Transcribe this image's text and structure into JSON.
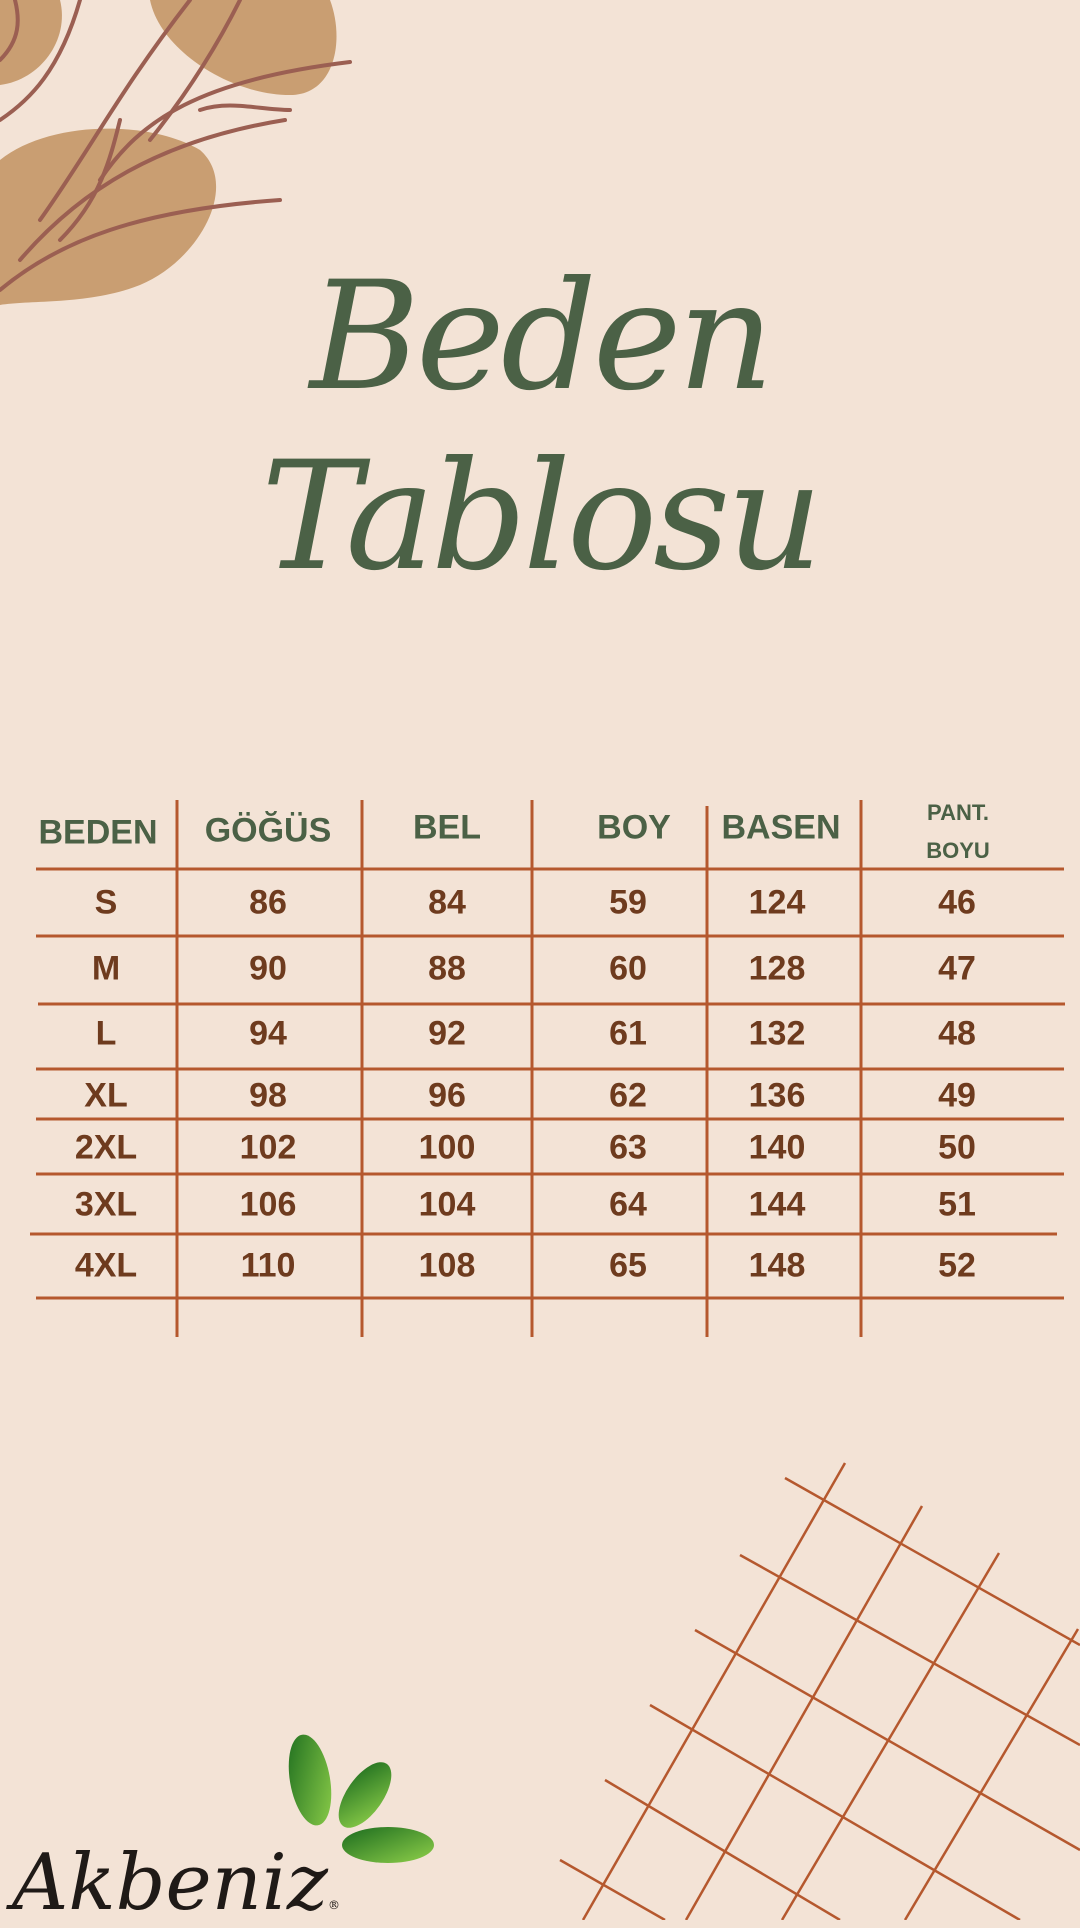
{
  "title": {
    "line1": "Beden",
    "line2": "Tablosu",
    "color": "#4b6146"
  },
  "table": {
    "headers": [
      "BEDEN",
      "GÖĞÜS",
      "BEL",
      "BOY",
      "BASEN",
      "PANT.\nBOYU"
    ],
    "header_pant_line1": "PANT.",
    "header_pant_line2": "BOYU",
    "rows": [
      [
        "S",
        "86",
        "84",
        "59",
        "124",
        "46"
      ],
      [
        "M",
        "90",
        "88",
        "60",
        "128",
        "47"
      ],
      [
        "L",
        "94",
        "92",
        "61",
        "132",
        "48"
      ],
      [
        "XL",
        "98",
        "96",
        "62",
        "136",
        "49"
      ],
      [
        "2XL",
        "102",
        "100",
        "63",
        "140",
        "50"
      ],
      [
        "3XL",
        "106",
        "104",
        "64",
        "144",
        "51"
      ],
      [
        "4XL",
        "110",
        "108",
        "65",
        "148",
        "52"
      ]
    ],
    "header_color": "#4b6146",
    "value_color": "#6e3b1e",
    "line_color": "#b5582e"
  },
  "logo": {
    "text": "Akbeniz",
    "registered": "®",
    "leaf_color": "#3f9a2e"
  },
  "colors": {
    "background": "#f3e3d6",
    "blob": "#c99e72",
    "branch": "#9b5f52"
  }
}
